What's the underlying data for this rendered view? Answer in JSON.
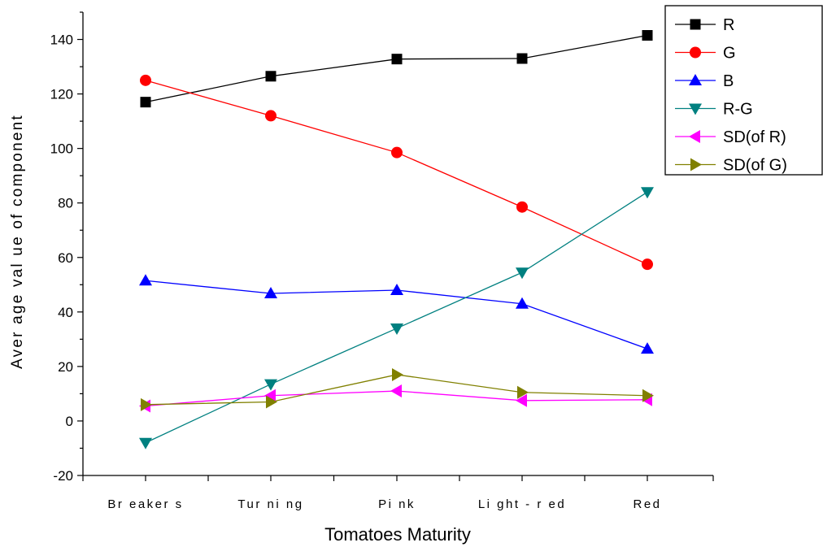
{
  "chart_data": {
    "type": "line",
    "title": "",
    "xlabel": "Tomatoes Maturity",
    "ylabel": "Aver age  val ue  of   component",
    "categories": [
      "Br eaker s",
      "Tur ni ng",
      "Pi nk",
      "Li ght - r ed",
      "Red"
    ],
    "ylim": [
      -20,
      150
    ],
    "yticks": [
      -20,
      0,
      20,
      40,
      60,
      80,
      100,
      120,
      140
    ],
    "grid": false,
    "legend_position": "top-right",
    "series": [
      {
        "name": "R",
        "color": "#000000",
        "marker": "square",
        "values": [
          117,
          126.5,
          132.8,
          133,
          141.5
        ]
      },
      {
        "name": "G",
        "color": "#ff0000",
        "marker": "circle",
        "values": [
          125,
          112,
          98.5,
          78.5,
          57.5
        ]
      },
      {
        "name": "B",
        "color": "#0000ff",
        "marker": "triangle-up",
        "values": [
          51.5,
          46.8,
          48,
          43,
          26.5
        ]
      },
      {
        "name": "R-G",
        "color": "#008080",
        "marker": "triangle-down",
        "values": [
          -8,
          13.5,
          34,
          54.5,
          84
        ]
      },
      {
        "name": "SD(of R)",
        "color": "#ff00ff",
        "marker": "triangle-left",
        "values": [
          5.5,
          9.3,
          11,
          7.5,
          7.8
        ]
      },
      {
        "name": "SD(of G)",
        "color": "#808000",
        "marker": "triangle-right",
        "values": [
          6,
          7,
          17,
          10.5,
          9.3
        ]
      }
    ]
  }
}
